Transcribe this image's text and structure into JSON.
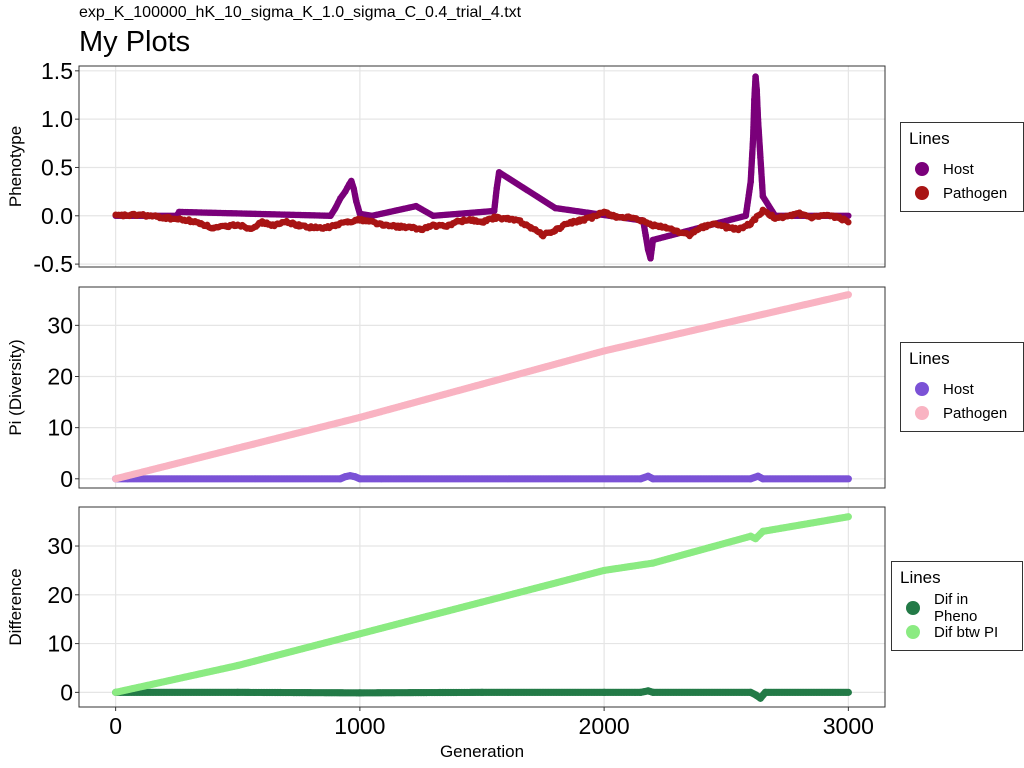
{
  "header": {
    "subtitle": "exp_K_100000_hK_10_sigma_K_1.0_sigma_C_0.4_trial_4.txt",
    "title": "My Plots"
  },
  "chart_data": [
    {
      "type": "scatter",
      "ylabel": "Phenotype",
      "xlim": [
        -150,
        3150
      ],
      "ylim": [
        -0.53,
        1.55
      ],
      "yticks": [
        -0.5,
        0.0,
        0.5,
        1.0,
        1.5
      ],
      "ytick_labels": [
        "-0.5",
        "0.0",
        "0.5",
        "1.0",
        "1.5"
      ],
      "grid": true,
      "legend": {
        "title": "Lines",
        "position": "right"
      },
      "series": [
        {
          "name": "Host",
          "color": "#7a007a",
          "x": [
            0,
            250,
            260,
            880,
            900,
            920,
            940,
            955,
            965,
            975,
            985,
            1000,
            1050,
            1230,
            1300,
            1550,
            1560,
            1570,
            1800,
            2160,
            2170,
            2180,
            2190,
            2200,
            2580,
            2600,
            2610,
            2615,
            2620,
            2625,
            2630,
            2640,
            2650,
            2700,
            3000
          ],
          "y": [
            0.0,
            0.0,
            0.04,
            0.0,
            0.08,
            0.18,
            0.25,
            0.32,
            0.36,
            0.28,
            0.15,
            0.02,
            0.0,
            0.1,
            0.0,
            0.05,
            0.28,
            0.45,
            0.08,
            -0.05,
            -0.2,
            -0.35,
            -0.44,
            -0.25,
            0.0,
            0.35,
            0.8,
            1.2,
            1.44,
            1.3,
            1.0,
            0.6,
            0.2,
            0.0,
            0.0
          ]
        },
        {
          "name": "Pathogen",
          "color": "#a81414",
          "x": [
            0,
            100,
            200,
            300,
            350,
            400,
            450,
            500,
            550,
            600,
            650,
            700,
            750,
            800,
            850,
            900,
            950,
            1000,
            1050,
            1100,
            1150,
            1200,
            1250,
            1300,
            1350,
            1400,
            1450,
            1500,
            1550,
            1600,
            1650,
            1700,
            1750,
            1800,
            1850,
            1900,
            1950,
            2000,
            2050,
            2100,
            2150,
            2200,
            2250,
            2300,
            2350,
            2400,
            2450,
            2500,
            2550,
            2600,
            2650,
            2700,
            2750,
            2800,
            2850,
            2900,
            2950,
            3000
          ],
          "y": [
            0.0,
            0.01,
            -0.02,
            -0.05,
            -0.08,
            -0.13,
            -0.11,
            -0.09,
            -0.13,
            -0.07,
            -0.1,
            -0.06,
            -0.1,
            -0.12,
            -0.13,
            -0.1,
            -0.06,
            -0.04,
            -0.06,
            -0.1,
            -0.11,
            -0.12,
            -0.14,
            -0.1,
            -0.11,
            -0.06,
            -0.04,
            -0.07,
            -0.02,
            -0.03,
            -0.05,
            -0.12,
            -0.2,
            -0.15,
            -0.08,
            -0.05,
            -0.02,
            0.04,
            -0.01,
            -0.02,
            -0.05,
            -0.1,
            -0.12,
            -0.16,
            -0.2,
            -0.12,
            -0.08,
            -0.12,
            -0.14,
            -0.08,
            0.05,
            -0.02,
            -0.01,
            0.02,
            -0.02,
            0.0,
            -0.01,
            -0.06
          ]
        }
      ]
    },
    {
      "type": "scatter",
      "ylabel": "Pi (Diversity)",
      "xlim": [
        -150,
        3150
      ],
      "ylim": [
        -1.8,
        37.5
      ],
      "yticks": [
        0,
        10,
        20,
        30
      ],
      "ytick_labels": [
        "0",
        "10",
        "20",
        "30"
      ],
      "grid": true,
      "legend": {
        "title": "Lines",
        "position": "right"
      },
      "series": [
        {
          "name": "Host",
          "color": "#7b52d6",
          "x": [
            0,
            920,
            940,
            960,
            980,
            1000,
            2150,
            2180,
            2200,
            2600,
            2630,
            2650,
            3000
          ],
          "y": [
            0,
            0,
            0.4,
            0.6,
            0.4,
            0,
            0,
            0.5,
            0,
            0,
            0.5,
            0,
            0
          ]
        },
        {
          "name": "Pathogen",
          "color": "#f9b3c2",
          "x": [
            0,
            500,
            1000,
            1500,
            2000,
            2500,
            3000
          ],
          "y": [
            0,
            6,
            12,
            18.5,
            25,
            30.5,
            36
          ]
        }
      ]
    },
    {
      "type": "scatter",
      "ylabel": "Difference",
      "xlabel": "Generation",
      "xlim": [
        -150,
        3150
      ],
      "ylim": [
        -3,
        38
      ],
      "yticks": [
        0,
        10,
        20,
        30
      ],
      "ytick_labels": [
        "0",
        "10",
        "20",
        "30"
      ],
      "xticks": [
        0,
        1000,
        2000,
        3000
      ],
      "xtick_labels": [
        "0",
        "1000",
        "2000",
        "3000"
      ],
      "grid": true,
      "legend": {
        "title": "Lines",
        "position": "right"
      },
      "series": [
        {
          "name": "Dif in Pheno",
          "color": "#237a47",
          "x": [
            0,
            500,
            1000,
            1500,
            2000,
            2150,
            2180,
            2200,
            2600,
            2620,
            2640,
            2660,
            3000
          ],
          "y": [
            0,
            0,
            -0.1,
            0,
            0,
            0,
            0.3,
            0,
            0,
            -0.5,
            -1.2,
            0,
            0
          ]
        },
        {
          "name": "Dif btw PI",
          "color": "#8beb82",
          "x": [
            0,
            500,
            1000,
            1500,
            2000,
            2200,
            2600,
            2620,
            2650,
            3000
          ],
          "y": [
            0,
            5.5,
            12,
            18.5,
            25,
            26.5,
            32,
            31.5,
            33,
            36
          ]
        }
      ]
    }
  ]
}
